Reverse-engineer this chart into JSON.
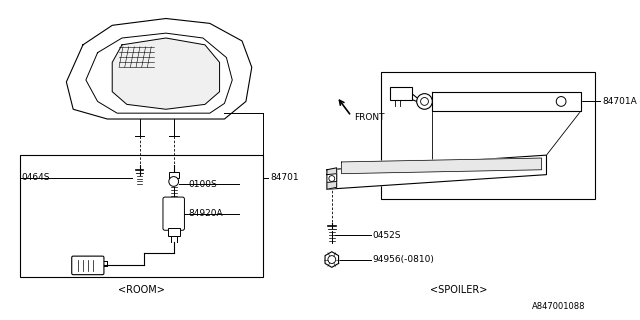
{
  "bg_color": "#ffffff",
  "line_color": "#000000",
  "fig_width": 6.4,
  "fig_height": 3.2,
  "dpi": 100,
  "watermark": "A847001088",
  "labels": {
    "room": "<ROOM>",
    "spoiler": "<SPOILER>",
    "front": "FRONT",
    "part_0464S": "0464S",
    "part_0100S": "0100S",
    "part_84920A": "84920A",
    "part_84701": "84701",
    "part_84701A": "84701A",
    "part_0452S": "0452S",
    "part_94956": "94956(-0810)"
  }
}
